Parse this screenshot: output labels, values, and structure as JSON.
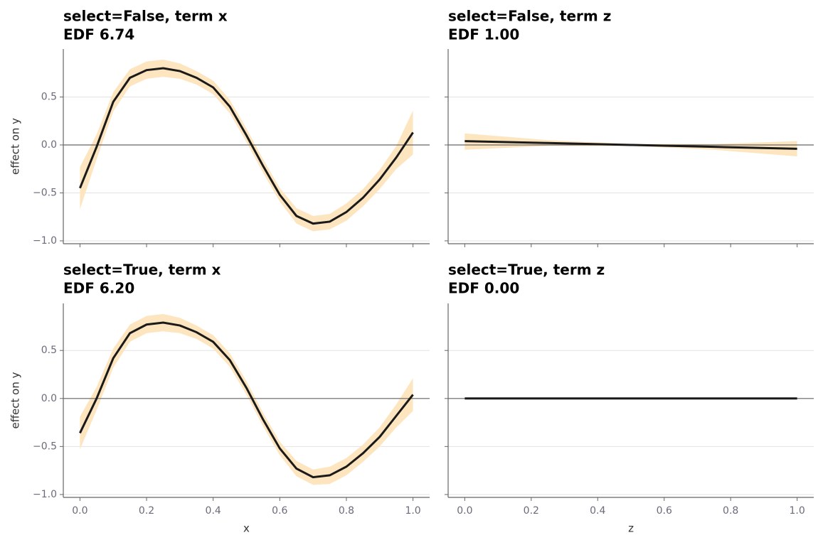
{
  "chart_data": [
    {
      "type": "line",
      "title": "select=False, term x",
      "subtitle": "EDF 6.74",
      "ylabel": "effect on y",
      "x": [
        0,
        0.05,
        0.1,
        0.15,
        0.2,
        0.25,
        0.3,
        0.35,
        0.4,
        0.45,
        0.5,
        0.55,
        0.6,
        0.65,
        0.7,
        0.75,
        0.8,
        0.85,
        0.9,
        0.95,
        1.0
      ],
      "values": [
        -0.45,
        -0.02,
        0.45,
        0.7,
        0.78,
        0.8,
        0.77,
        0.7,
        0.6,
        0.4,
        0.1,
        -0.22,
        -0.52,
        -0.74,
        -0.82,
        -0.8,
        -0.7,
        -0.55,
        -0.36,
        -0.13,
        0.13
      ],
      "lower": [
        -0.67,
        -0.15,
        0.35,
        0.61,
        0.69,
        0.71,
        0.69,
        0.63,
        0.53,
        0.33,
        0.03,
        -0.29,
        -0.59,
        -0.82,
        -0.9,
        -0.88,
        -0.79,
        -0.64,
        -0.46,
        -0.25,
        -0.1
      ],
      "upper": [
        -0.23,
        0.11,
        0.55,
        0.79,
        0.87,
        0.89,
        0.85,
        0.77,
        0.67,
        0.47,
        0.17,
        -0.15,
        -0.45,
        -0.66,
        -0.74,
        -0.72,
        -0.61,
        -0.46,
        -0.26,
        -0.01,
        0.36
      ],
      "color": "#1a1a1a",
      "band_color": "#fde5bf",
      "xlim": [
        -0.05,
        1.05
      ],
      "ylim": [
        -1.03,
        1.0
      ],
      "xticks": [
        0,
        0.2,
        0.4,
        0.6,
        0.8,
        1
      ],
      "yticks": [
        {
          "value": -1,
          "label": "−1.0"
        },
        {
          "value": -0.5,
          "label": "−0.5"
        },
        {
          "value": 0,
          "label": "0.0"
        },
        0.5
      ],
      "xtick_labels": false,
      "ytick_labels": true,
      "grid": true,
      "zero_line": true
    },
    {
      "type": "line",
      "title": "select=False, term z",
      "subtitle": "EDF 1.00",
      "x": [
        0,
        0.25,
        0.5,
        0.75,
        1.0
      ],
      "values": [
        0.04,
        0.02,
        0,
        -0.02,
        -0.04
      ],
      "lower": [
        -0.05,
        -0.01,
        -0.01,
        -0.05,
        -0.12
      ],
      "upper": [
        0.12,
        0.05,
        0.01,
        0.01,
        0.04
      ],
      "color": "#1a1a1a",
      "band_color": "#fde5bf",
      "xlim": [
        -0.05,
        1.05
      ],
      "ylim": [
        -1.03,
        1.0
      ],
      "xticks": [
        0,
        0.2,
        0.4,
        0.6,
        0.8,
        1
      ],
      "yticks": [
        -1,
        -0.5,
        0,
        0.5
      ],
      "xtick_labels": false,
      "ytick_labels": false,
      "grid": true,
      "zero_line": true
    },
    {
      "type": "line",
      "title": "select=True, term x",
      "subtitle": "EDF 6.20",
      "ylabel": "effect on y",
      "xlabel": "x",
      "x": [
        0,
        0.05,
        0.1,
        0.15,
        0.2,
        0.25,
        0.3,
        0.35,
        0.4,
        0.45,
        0.5,
        0.55,
        0.6,
        0.65,
        0.7,
        0.75,
        0.8,
        0.85,
        0.9,
        0.95,
        1.0
      ],
      "values": [
        -0.36,
        0.0,
        0.42,
        0.68,
        0.77,
        0.79,
        0.76,
        0.69,
        0.59,
        0.4,
        0.11,
        -0.22,
        -0.52,
        -0.73,
        -0.82,
        -0.8,
        -0.71,
        -0.57,
        -0.4,
        -0.18,
        0.04
      ],
      "lower": [
        -0.53,
        -0.12,
        0.32,
        0.59,
        0.68,
        0.7,
        0.68,
        0.62,
        0.52,
        0.33,
        0.04,
        -0.29,
        -0.59,
        -0.81,
        -0.9,
        -0.89,
        -0.8,
        -0.66,
        -0.5,
        -0.3,
        -0.13
      ],
      "upper": [
        -0.19,
        0.12,
        0.52,
        0.77,
        0.86,
        0.88,
        0.84,
        0.76,
        0.66,
        0.47,
        0.18,
        -0.15,
        -0.45,
        -0.65,
        -0.74,
        -0.71,
        -0.62,
        -0.48,
        -0.3,
        -0.06,
        0.21
      ],
      "color": "#1a1a1a",
      "band_color": "#fde5bf",
      "xlim": [
        -0.05,
        1.05
      ],
      "ylim": [
        -1.03,
        0.99
      ],
      "xticks": [
        {
          "value": 0,
          "label": "0.0"
        },
        0.2,
        0.4,
        0.6,
        0.8,
        {
          "value": 1,
          "label": "1.0"
        }
      ],
      "yticks": [
        {
          "value": -1,
          "label": "−1.0"
        },
        {
          "value": -0.5,
          "label": "−0.5"
        },
        {
          "value": 0,
          "label": "0.0"
        },
        0.5
      ],
      "xtick_labels": true,
      "ytick_labels": true,
      "grid": true,
      "zero_line": true
    },
    {
      "type": "line",
      "title": "select=True, term z",
      "subtitle": "EDF 0.00",
      "xlabel": "z",
      "x": [
        0,
        1.0
      ],
      "values": [
        0,
        0
      ],
      "lower": [
        0,
        0
      ],
      "upper": [
        0,
        0
      ],
      "color": "#1a1a1a",
      "band_color": "#fde5bf",
      "xlim": [
        -0.05,
        1.05
      ],
      "ylim": [
        -1.03,
        0.99
      ],
      "xticks": [
        {
          "value": 0,
          "label": "0.0"
        },
        0.2,
        0.4,
        0.6,
        0.8,
        {
          "value": 1,
          "label": "1.0"
        }
      ],
      "yticks": [
        -1,
        -0.5,
        0,
        0.5
      ],
      "xtick_labels": true,
      "ytick_labels": false,
      "grid": true,
      "zero_line": true
    }
  ]
}
